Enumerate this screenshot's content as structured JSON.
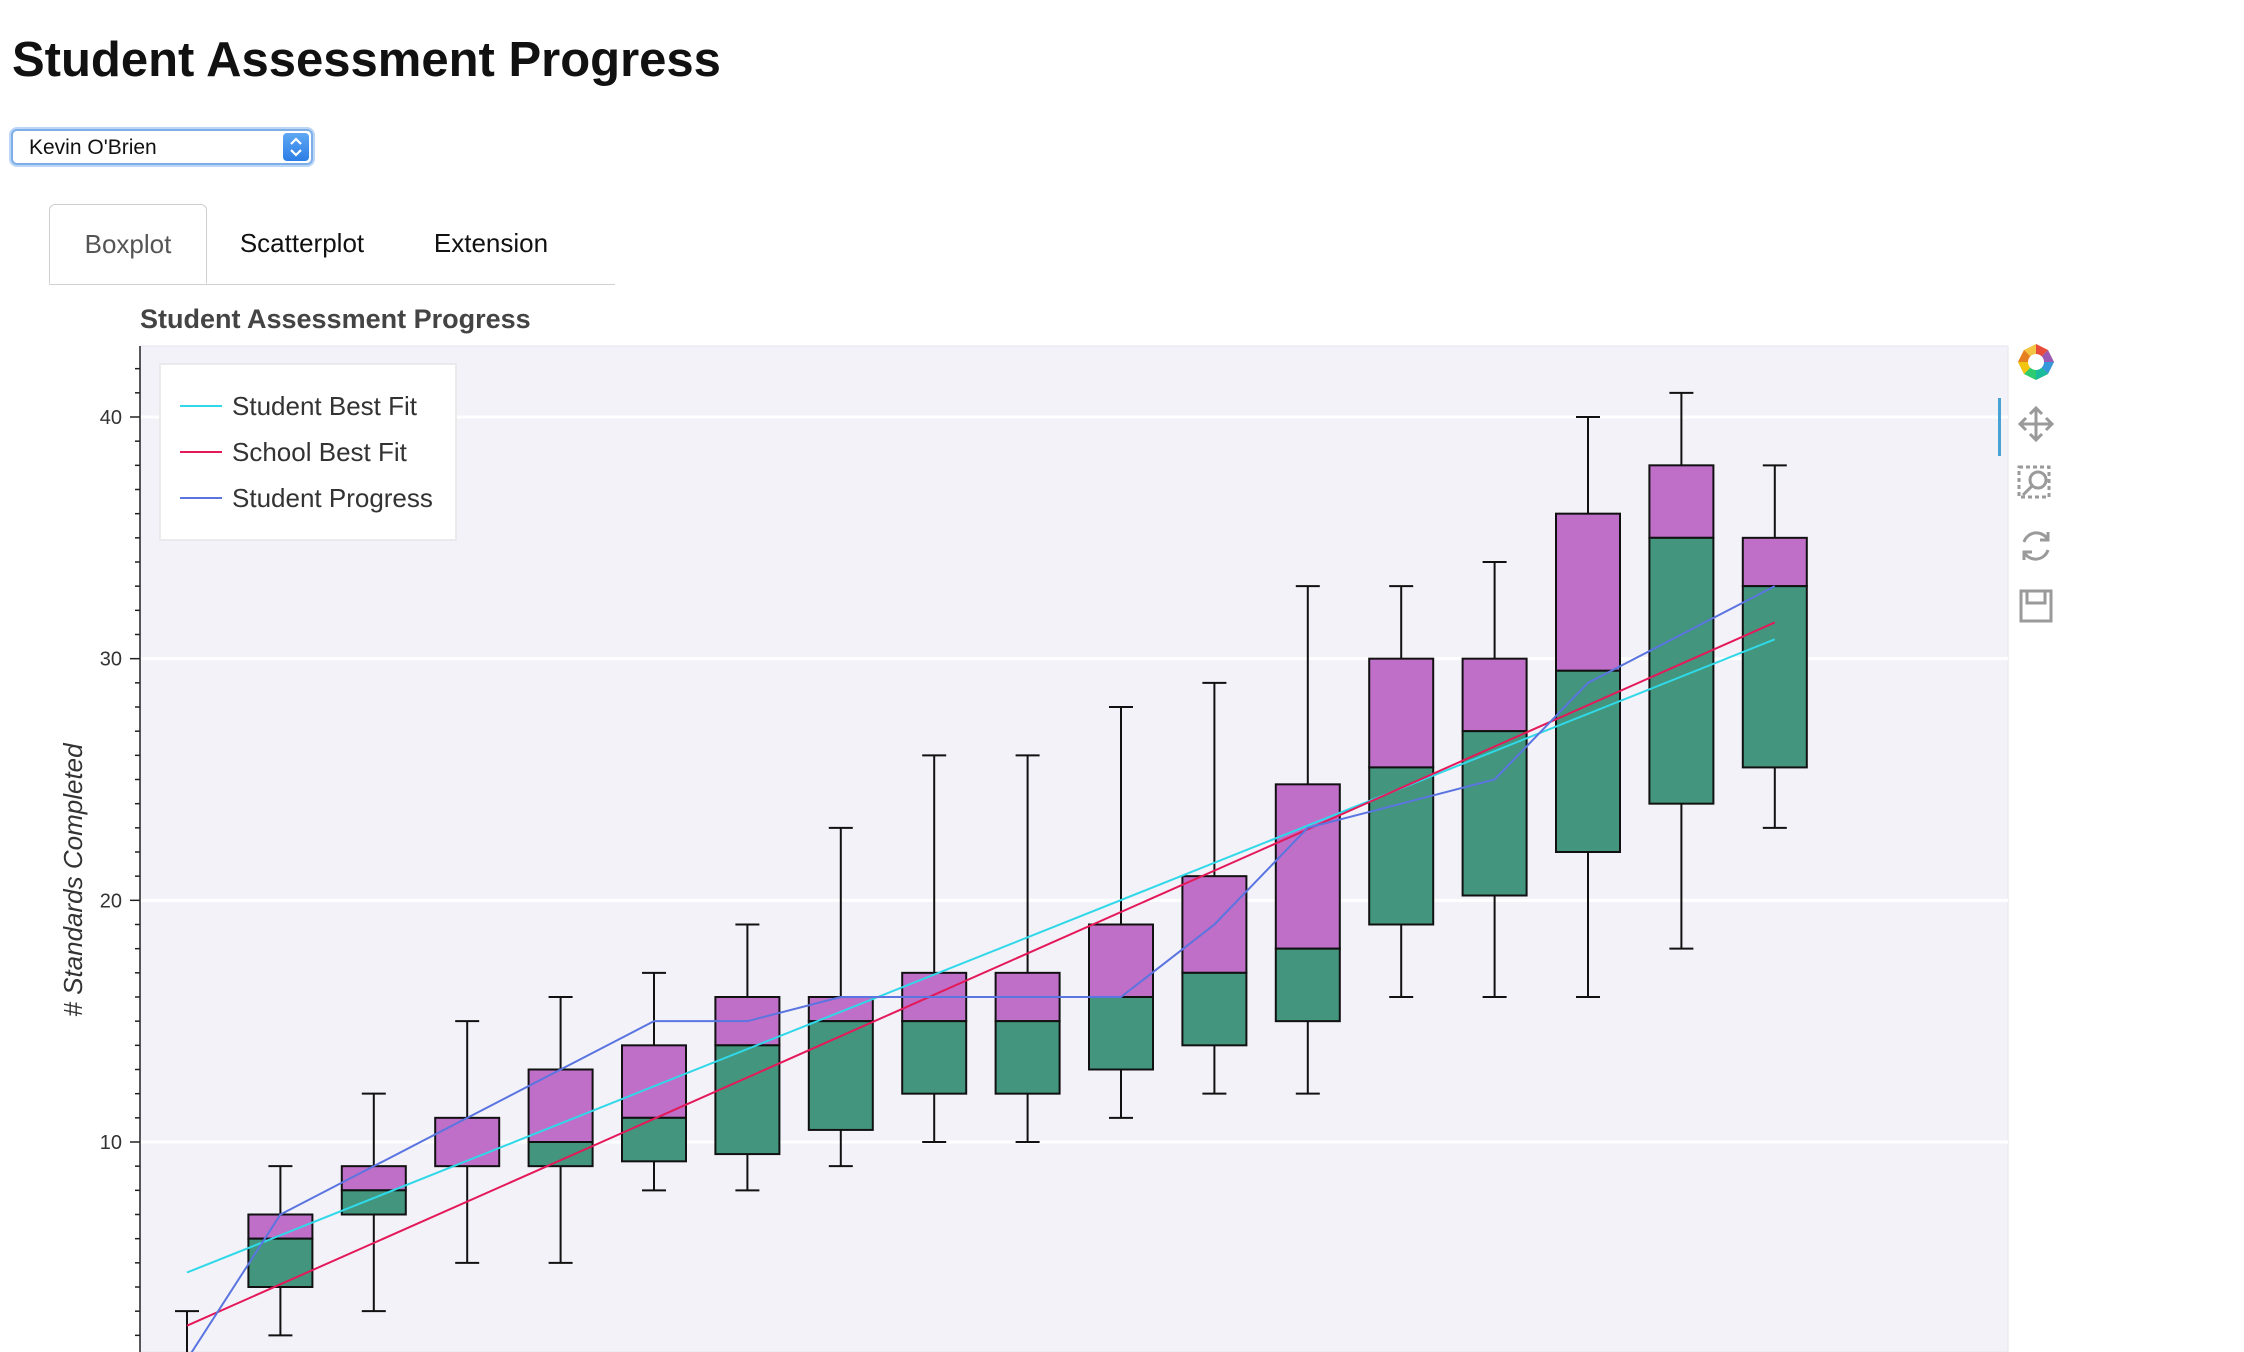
{
  "page": {
    "title": "Student Assessment Progress"
  },
  "selector": {
    "value": "Kevin O'Brien",
    "options": [
      "Kevin O'Brien"
    ]
  },
  "tabs": [
    {
      "label": "Boxplot",
      "active": true
    },
    {
      "label": "Scatterplot",
      "active": false
    },
    {
      "label": "Extension",
      "active": false
    }
  ],
  "toolbar": {
    "tools": [
      "bokeh-logo-icon",
      "pan-icon",
      "box-zoom-icon",
      "reset-icon",
      "save-icon"
    ]
  },
  "colors": {
    "upper_box": "#bf6fc8",
    "lower_box": "#43967d",
    "student_best_fit": "#30d8e8",
    "school_best_fit": "#e4195a",
    "student_progress": "#5a74e0",
    "plot_bg": "#f3f2f9"
  },
  "chart_data": {
    "type": "boxplot",
    "title": "Student Assessment Progress",
    "xlabel": "",
    "ylabel": "# Standards Completed",
    "ylim": [
      1,
      43
    ],
    "yticks": [
      10,
      20,
      30,
      40
    ],
    "grid": true,
    "legend_position": "top-left",
    "boxes": [
      {
        "q1": 1,
        "median": 1,
        "q3": 1,
        "lower": 1,
        "upper": 3
      },
      {
        "q1": 4,
        "median": 6,
        "q3": 7,
        "lower": 2,
        "upper": 9
      },
      {
        "q1": 7,
        "median": 8,
        "q3": 9,
        "lower": 3,
        "upper": 12
      },
      {
        "q1": 9,
        "median": 9,
        "q3": 11,
        "lower": 5,
        "upper": 15
      },
      {
        "q1": 9,
        "median": 10,
        "q3": 13,
        "lower": 5,
        "upper": 16
      },
      {
        "q1": 9.2,
        "median": 11,
        "q3": 14,
        "lower": 8,
        "upper": 17
      },
      {
        "q1": 9.5,
        "median": 14,
        "q3": 16,
        "lower": 8,
        "upper": 19
      },
      {
        "q1": 10.5,
        "median": 15,
        "q3": 16,
        "lower": 9,
        "upper": 23
      },
      {
        "q1": 12,
        "median": 15,
        "q3": 17,
        "lower": 10,
        "upper": 26
      },
      {
        "q1": 12,
        "median": 15,
        "q3": 17,
        "lower": 10,
        "upper": 26
      },
      {
        "q1": 13,
        "median": 16,
        "q3": 19,
        "lower": 11,
        "upper": 28
      },
      {
        "q1": 14,
        "median": 17,
        "q3": 21,
        "lower": 12,
        "upper": 29
      },
      {
        "q1": 15,
        "median": 18,
        "q3": 24.8,
        "lower": 12,
        "upper": 33
      },
      {
        "q1": 19,
        "median": 25.5,
        "q3": 30,
        "lower": 16,
        "upper": 33
      },
      {
        "q1": 20.2,
        "median": 27,
        "q3": 30,
        "lower": 16,
        "upper": 34
      },
      {
        "q1": 22,
        "median": 29.5,
        "q3": 36,
        "lower": 16,
        "upper": 40
      },
      {
        "q1": 24,
        "median": 35,
        "q3": 38,
        "lower": 18,
        "upper": 41
      },
      {
        "q1": 25.5,
        "median": 33,
        "q3": 35,
        "lower": 23,
        "upper": 38
      }
    ],
    "series": [
      {
        "name": "Student Best Fit",
        "values": [
          4.6,
          30.8
        ]
      },
      {
        "name": "School Best Fit",
        "values": [
          2.4,
          31.5
        ]
      },
      {
        "name": "Student Progress",
        "values": [
          1,
          7,
          9,
          11,
          13,
          15,
          15,
          16,
          16,
          16,
          16,
          19,
          23,
          24,
          25,
          29,
          31,
          33
        ]
      }
    ]
  }
}
